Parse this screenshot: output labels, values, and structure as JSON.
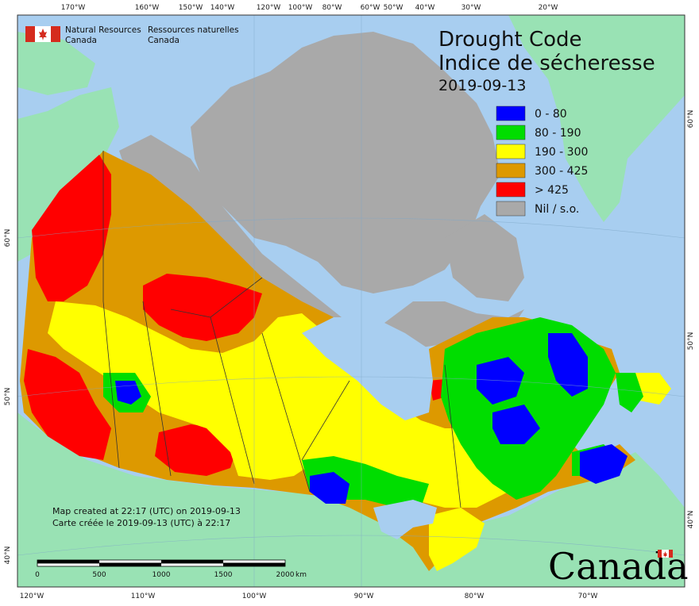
{
  "title_en": "Drought Code",
  "title_fr": "Indice de sécheresse",
  "date": "2019-09-13",
  "agency": {
    "en_line1": "Natural Resources",
    "en_line2": "Canada",
    "fr_line1": "Ressources naturelles",
    "fr_line2": "Canada"
  },
  "legend": [
    {
      "label": "0 - 80",
      "color": "#0000ff"
    },
    {
      "label": "80 - 190",
      "color": "#00dd00"
    },
    {
      "label": "190 - 300",
      "color": "#ffff00"
    },
    {
      "label": "300 - 425",
      "color": "#dd9900"
    },
    {
      "label": "> 425",
      "color": "#ff0000"
    },
    {
      "label": "Nil / s.o.",
      "color": "#a9a9a9"
    }
  ],
  "created_en": "Map created at 22:17 (UTC) on 2019-09-13",
  "created_fr": "Carte créée le 2019-09-13 (UTC) à 22:17",
  "scale": {
    "labels": [
      "0",
      "500",
      "1000",
      "1500",
      "2000"
    ],
    "unit": "km"
  },
  "top_ticks": [
    "170°W",
    "160°W",
    "150°W",
    "140°W",
    "120°W",
    "100°W",
    "80°W",
    "60°W",
    "50°W",
    "40°W",
    "30°W",
    "20°W"
  ],
  "bottom_ticks": [
    "120°W",
    "110°W",
    "100°W",
    "90°W",
    "80°W",
    "70°W"
  ],
  "left_ticks": [
    "60°N",
    "50°N",
    "40°N"
  ],
  "right_ticks": [
    "60°N",
    "50°N",
    "40°N"
  ],
  "wordmark": "Canada",
  "colors": {
    "water": "#a8cef0",
    "land_foreign": "#99e2b4",
    "nil": "#a9a9a9",
    "border": "#333333"
  }
}
